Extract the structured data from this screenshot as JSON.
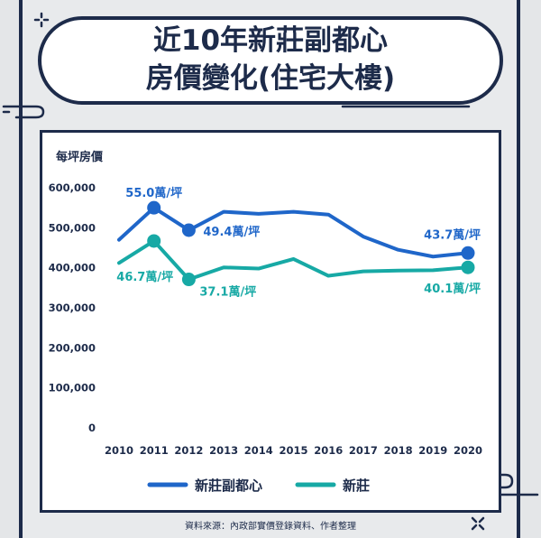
{
  "title_line1": "近10年新莊副都心",
  "title_line2": "房價變化(住宅大樓)",
  "source": "資料來源：內政部實價登錄資料、作者整理",
  "colors": {
    "navy": "#1d2b4a",
    "series1": "#1f66c9",
    "series2": "#17a9a5",
    "background": "#e8eaec",
    "panel": "#ffffff"
  },
  "chart_data": {
    "type": "line",
    "ylabel": "每坪房價",
    "xlabel": "",
    "x": [
      "2010",
      "2011",
      "2012",
      "2013",
      "2014",
      "2015",
      "2016",
      "2017",
      "2018",
      "2019",
      "2020"
    ],
    "ylim": [
      0,
      600000
    ],
    "yticks": [
      "0",
      "100,000",
      "200,000",
      "300,000",
      "400,000",
      "500,000",
      "600,000"
    ],
    "grid": false,
    "legend_position": "bottom",
    "series": [
      {
        "name": "新莊副都心",
        "values": [
          470000,
          550000,
          494000,
          540000,
          535000,
          540000,
          533000,
          478000,
          445000,
          428000,
          437000
        ]
      },
      {
        "name": "新莊",
        "values": [
          412000,
          467000,
          371000,
          401000,
          398000,
          422000,
          380000,
          391000,
          393000,
          394000,
          401000
        ]
      }
    ],
    "annotations": [
      {
        "series": 0,
        "index": 1,
        "text": "55.0萬/坪"
      },
      {
        "series": 0,
        "index": 2,
        "text": "49.4萬/坪"
      },
      {
        "series": 0,
        "index": 10,
        "text": "43.7萬/坪"
      },
      {
        "series": 1,
        "index": 1,
        "text": "46.7萬/坪"
      },
      {
        "series": 1,
        "index": 2,
        "text": "37.1萬/坪"
      },
      {
        "series": 1,
        "index": 10,
        "text": "40.1萬/坪"
      }
    ]
  }
}
